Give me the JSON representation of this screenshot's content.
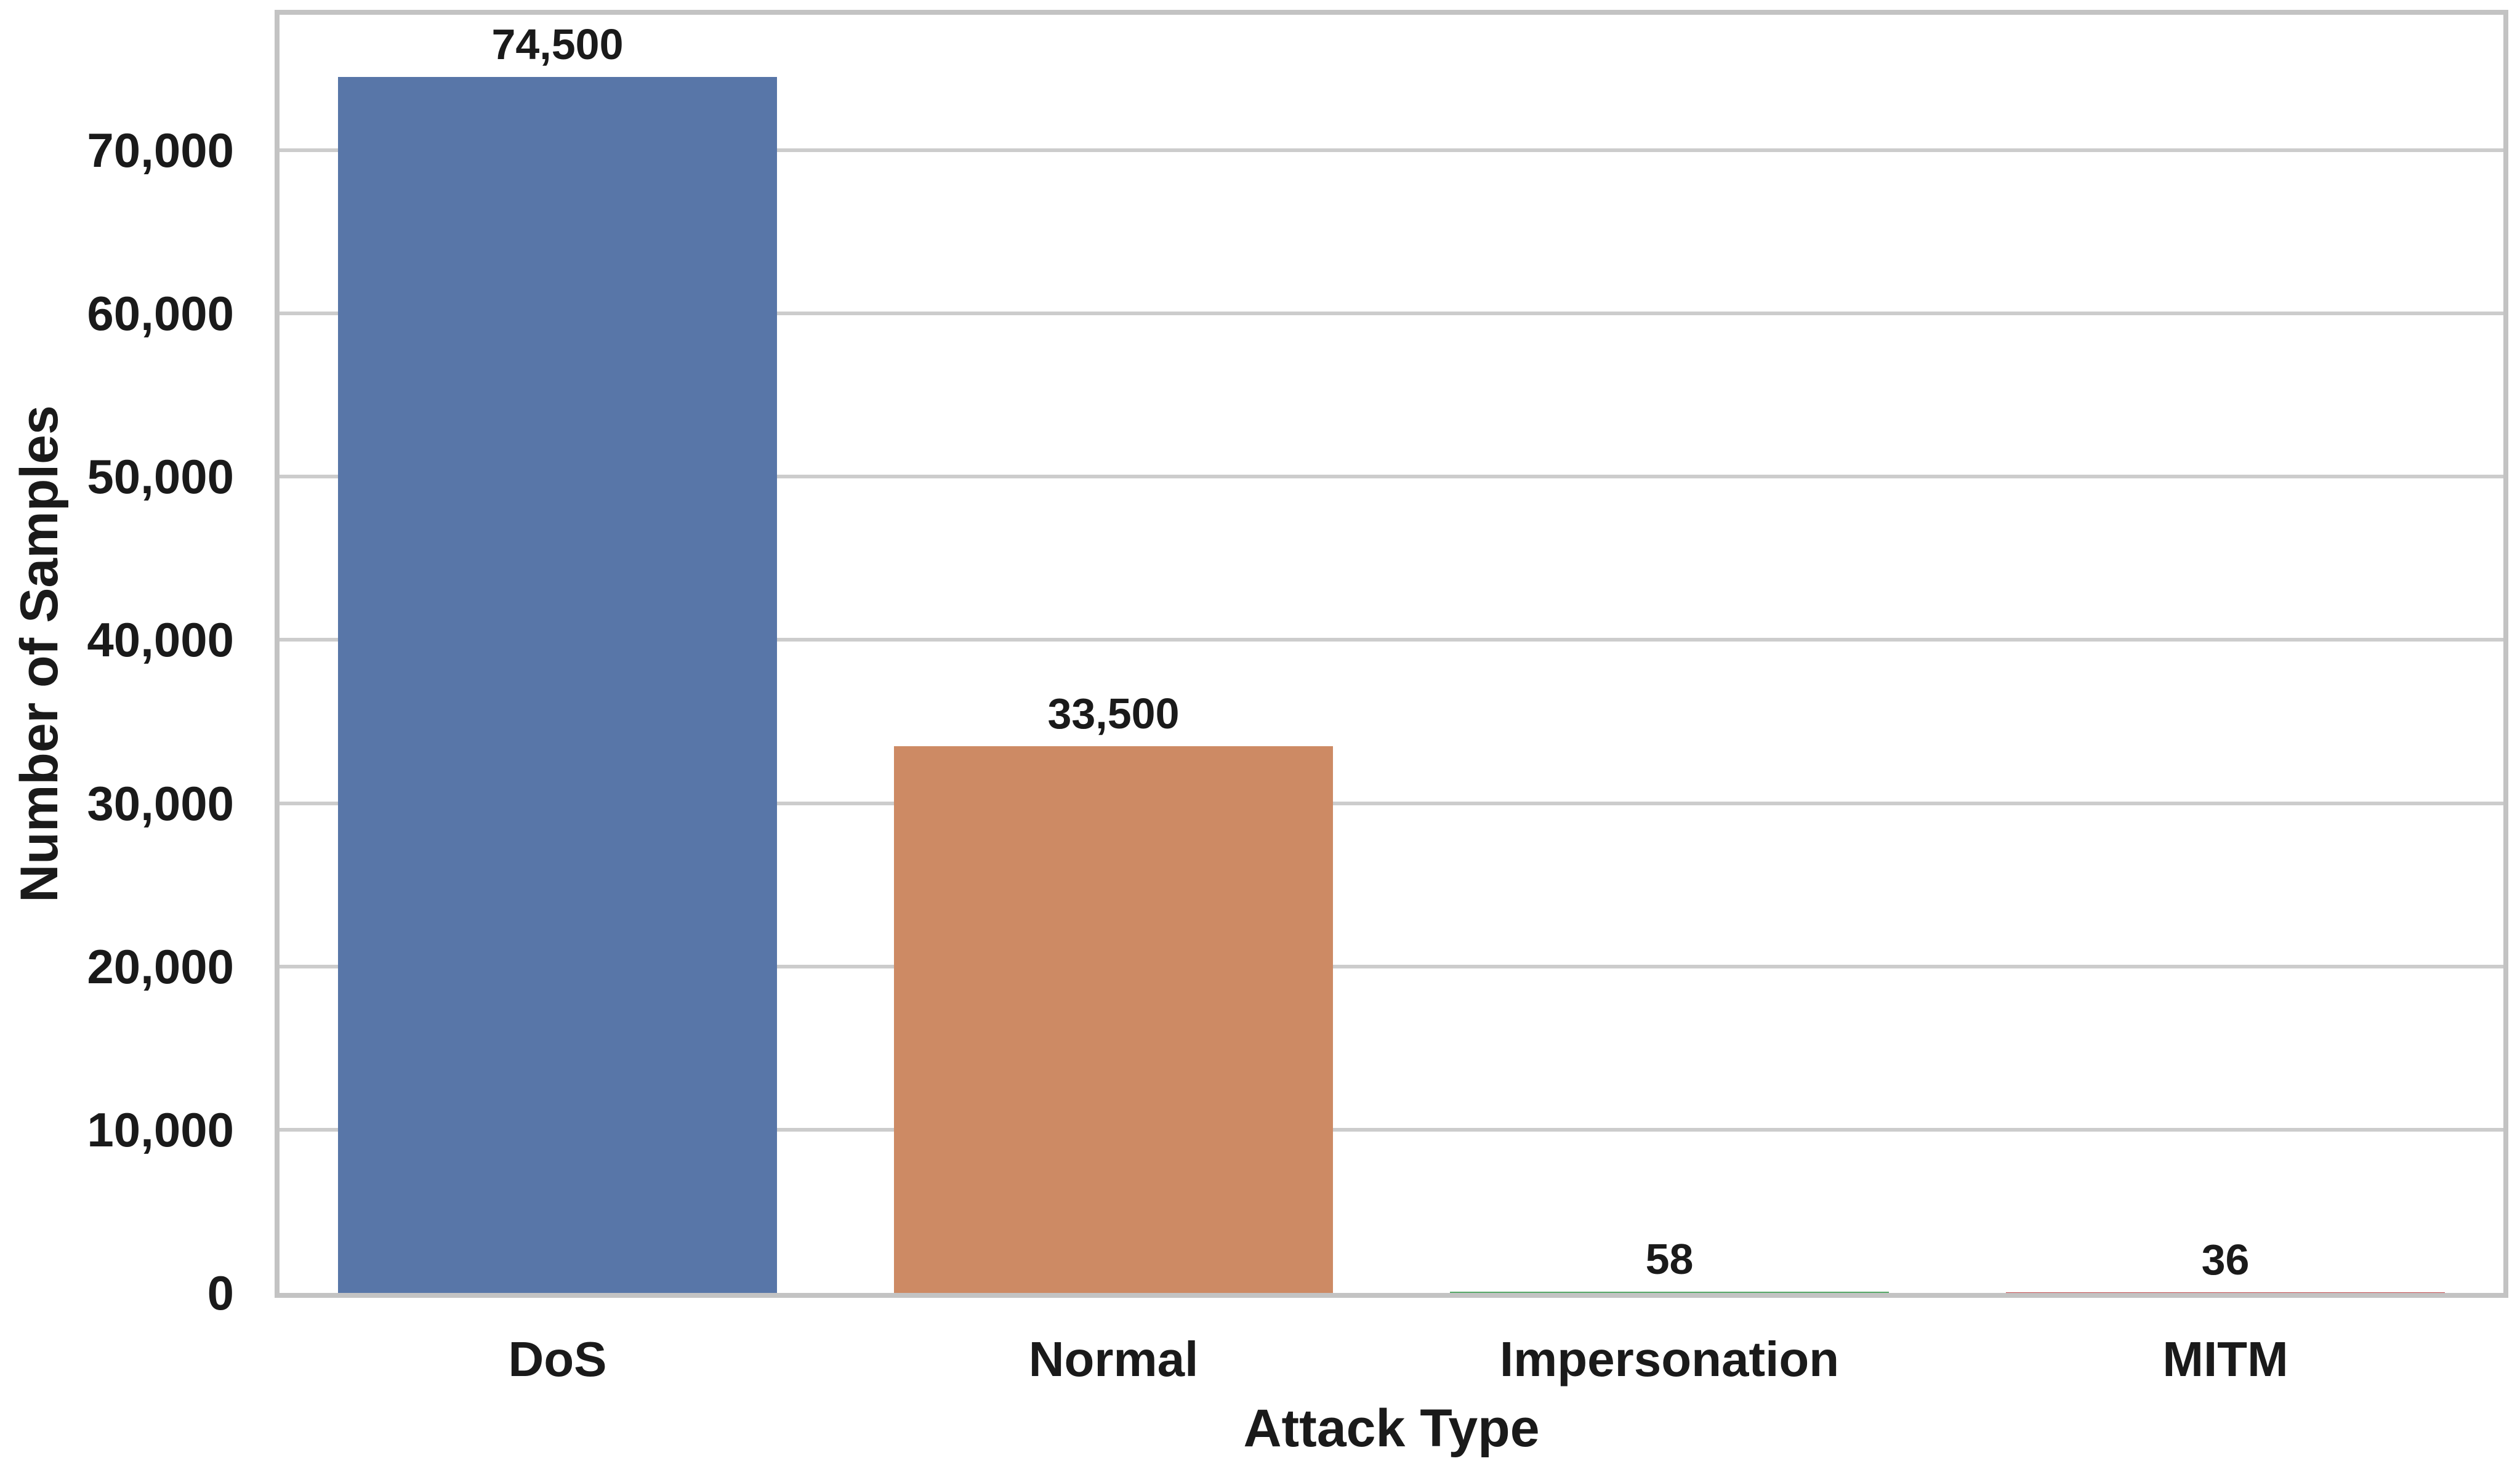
{
  "chart_data": {
    "type": "bar",
    "title": "",
    "categories": [
      "DoS",
      "Normal",
      "Impersonation",
      "MITM"
    ],
    "values": [
      74500,
      33500,
      58,
      36
    ],
    "value_labels": [
      "74,500",
      "33,500",
      "58",
      "36"
    ],
    "bar_colors": [
      "#5876A8",
      "#CD8A64",
      "#55A868",
      "#C44E52"
    ],
    "xlabel": "Attack Type",
    "ylabel": "Number of Samples",
    "ylim": [
      0,
      78300
    ],
    "yticks": [
      0,
      10000,
      20000,
      30000,
      40000,
      50000,
      60000,
      70000
    ],
    "ytick_labels": [
      "0",
      "10,000",
      "20,000",
      "30,000",
      "40,000",
      "50,000",
      "60,000",
      "70,000"
    ],
    "grid": "horizontal",
    "legend": "none"
  },
  "colors": {
    "background": "#ffffff",
    "grid": "#cccccc",
    "spine": "#c3c3c3",
    "text": "#1a1a1a",
    "bar_blue": "#5876A8",
    "bar_orange": "#CD8A64"
  }
}
